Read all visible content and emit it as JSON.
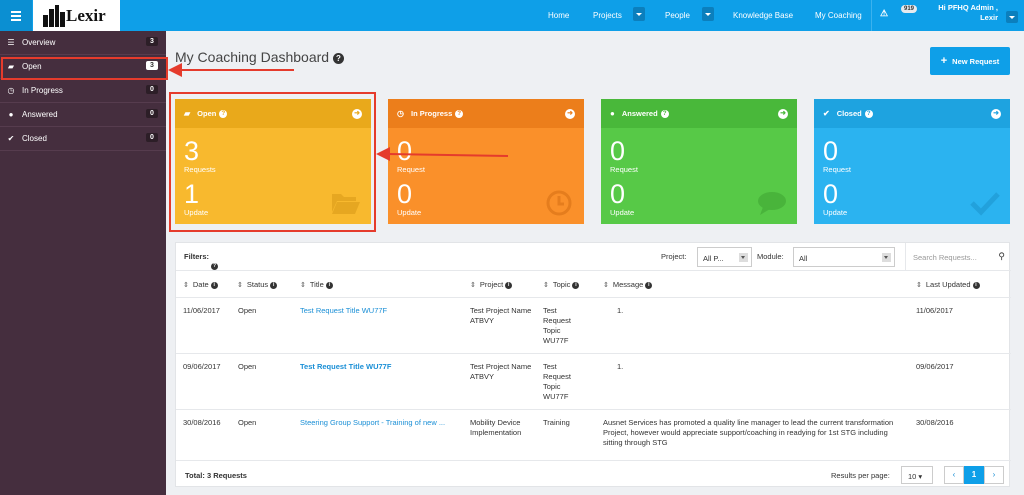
{
  "app": {
    "logo_text": "Lexir"
  },
  "nav": {
    "home": "Home",
    "projects": "Projects",
    "people": "People",
    "knowledge_base": "Knowledge Base",
    "my_coaching": "My Coaching",
    "notification_count": "919",
    "user_greeting_line1": "Hi PFHQ Admin ,",
    "user_greeting_line2": "Lexir"
  },
  "sidebar": {
    "items": [
      {
        "label": "Overview",
        "count": "3",
        "icon": "list-icon"
      },
      {
        "label": "Open",
        "count": "3",
        "icon": "folder-open-icon"
      },
      {
        "label": "In Progress",
        "count": "0",
        "icon": "clock-icon"
      },
      {
        "label": "Answered",
        "count": "0",
        "icon": "speech-bubble-icon"
      },
      {
        "label": "Closed",
        "count": "0",
        "icon": "check-icon"
      }
    ]
  },
  "page": {
    "title": "My Coaching Dashboard",
    "new_request": "New Request"
  },
  "cards": {
    "open": {
      "title": "Open",
      "requests": "3",
      "requests_label": "Requests",
      "updates": "1",
      "updates_label": "Update",
      "color": "#f8b92e"
    },
    "in_progress": {
      "title": "In Progress",
      "requests": "0",
      "requests_label": "Request",
      "updates": "0",
      "updates_label": "Update",
      "color": "#fa902a"
    },
    "answered": {
      "title": "Answered",
      "requests": "0",
      "requests_label": "Request",
      "updates": "0",
      "updates_label": "Update",
      "color": "#57c947"
    },
    "closed": {
      "title": "Closed",
      "requests": "0",
      "requests_label": "Request",
      "updates": "0",
      "updates_label": "Update",
      "color": "#2bb3f0"
    }
  },
  "filters": {
    "label": "Filters:",
    "project_label": "Project:",
    "project_value": "All P...",
    "module_label": "Module:",
    "module_value": "All",
    "search_placeholder": "Search Requests..."
  },
  "table": {
    "headers": {
      "date": "Date",
      "status": "Status",
      "title": "Title",
      "project": "Project",
      "topic": "Topic",
      "message": "Message",
      "last_updated": "Last Updated"
    },
    "rows": [
      {
        "date": "11/06/2017",
        "status": "Open",
        "title": "Test Request Title WU77F",
        "project": "Test Project Name ATBVY",
        "topic": "Test Request Topic WU77F",
        "message": "1.",
        "last_updated": "11/06/2017"
      },
      {
        "date": "09/06/2017",
        "status": "Open",
        "title": "Test Request Title WU77F",
        "project": "Test Project Name ATBVY",
        "topic": "Test Request Topic WU77F",
        "message": "1.",
        "last_updated": "09/06/2017"
      },
      {
        "date": "30/08/2016",
        "status": "Open",
        "title": "Steering Group Support - Training of new ...",
        "project": "Mobility Device Implementation",
        "topic": "Training",
        "message": "Ausnet Services has promoted a quality line manager to lead the current transformation Project, however would appreciate support/coaching in readying for 1st STG including sitting through STG",
        "last_updated": "30/08/2016"
      }
    ],
    "total": "Total: 3 Requests",
    "results_per_page_label": "Results per page:",
    "results_per_page_value": "10",
    "current_page": "1"
  },
  "annotation_color": "#e53b2c"
}
